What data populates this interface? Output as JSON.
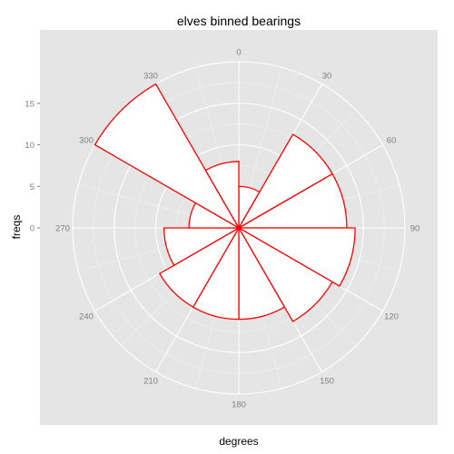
{
  "chart_data": {
    "type": "bar",
    "coord": "polar",
    "title": "elves binned bearings",
    "xlabel": "degrees",
    "ylabel": "freqs",
    "bin_width": 30,
    "x": [
      15,
      45,
      75,
      105,
      135,
      165,
      195,
      225,
      255,
      285,
      315,
      345
    ],
    "values": [
      5,
      13,
      13,
      14,
      13,
      11,
      11,
      11,
      9,
      6,
      20,
      8
    ],
    "ylim": [
      0,
      20
    ],
    "y_ticks": [
      0,
      5,
      10,
      15
    ],
    "angle_ticks": [
      0,
      30,
      60,
      90,
      120,
      150,
      180,
      210,
      240,
      270,
      300,
      330
    ],
    "grid": true,
    "colors": {
      "panel": "#e5e5e5",
      "grid": "#ffffff",
      "bar_fill": "#ffffff",
      "bar_outline": "#ff0000"
    }
  }
}
